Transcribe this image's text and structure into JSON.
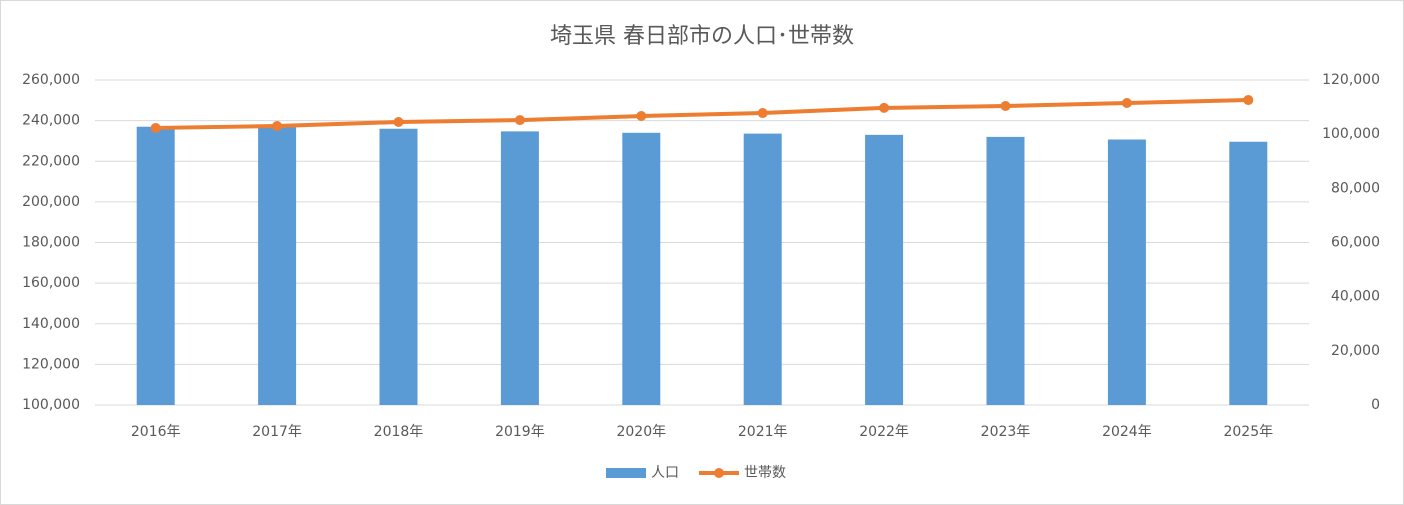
{
  "chart_data": {
    "type": "bar-line",
    "title": "埼玉県 春日部市の人口･世帯数",
    "categories": [
      "2016年",
      "2017年",
      "2018年",
      "2019年",
      "2020年",
      "2021年",
      "2022年",
      "2023年",
      "2024年",
      "2025年"
    ],
    "series": [
      {
        "name": "人口",
        "type": "bar",
        "color": "#5b9bd5",
        "values": [
          237000,
          236700,
          236000,
          234700,
          234000,
          233600,
          233000,
          232000,
          230700,
          229600
        ]
      },
      {
        "name": "世帯数",
        "type": "line",
        "axis": "y2",
        "color": "#ed7d31",
        "values": [
          102300,
          103000,
          104500,
          105200,
          106700,
          107800,
          109700,
          110400,
          111500,
          112600
        ]
      }
    ],
    "ylim": [
      100000,
      260000
    ],
    "yticks": [
      {
        "value": 100000,
        "label": "100,000"
      },
      {
        "value": 120000,
        "label": "120,000"
      },
      {
        "value": 140000,
        "label": "140,000"
      },
      {
        "value": 160000,
        "label": "160,000"
      },
      {
        "value": 180000,
        "label": "180,000"
      },
      {
        "value": 200000,
        "label": "200,000"
      },
      {
        "value": 220000,
        "label": "220,000"
      },
      {
        "value": 240000,
        "label": "240,000"
      },
      {
        "value": 260000,
        "label": "260,000"
      }
    ],
    "y2lim": [
      0,
      120000
    ],
    "y2ticks": [
      0,
      {
        "value": 20000,
        "label": "20,000"
      },
      {
        "value": 40000,
        "label": "40,000"
      },
      {
        "value": 60000,
        "label": "60,000"
      },
      {
        "value": 80000,
        "label": "80,000"
      },
      {
        "value": 100000,
        "label": "100,000"
      },
      {
        "value": 120000,
        "label": "120,000"
      }
    ],
    "grid": true,
    "legend": "bottom"
  }
}
